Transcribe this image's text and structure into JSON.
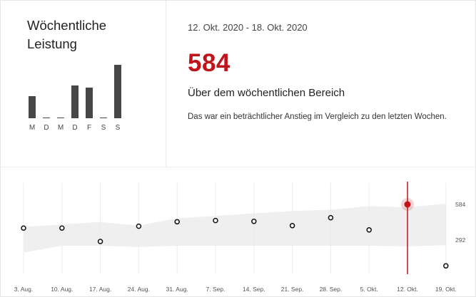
{
  "card": {
    "title": "Wöchentliche Leistung",
    "date_range": "12. Okt. 2020 - 18. Okt. 2020",
    "value": "584",
    "subtitle": "Über dem wöchentlichen Bereich",
    "description": "Das war ein beträchtlicher Anstieg im Vergleich zu den letzten Wochen.",
    "accent_color": "#c0141b"
  },
  "daily_bars": {
    "days": [
      "M",
      "D",
      "M",
      "D",
      "F",
      "S",
      "S"
    ],
    "values": [
      0.42,
      0.02,
      0.02,
      0.62,
      0.58,
      0.02,
      1.0
    ]
  },
  "chart_data": {
    "type": "scatter",
    "x": [
      "3. Aug.",
      "10. Aug.",
      "17. Aug.",
      "24. Aug.",
      "31. Aug.",
      "7. Sep.",
      "14. Sep.",
      "21. Sep.",
      "28. Sep.",
      "5. Okt.",
      "12. Okt.",
      "19. Okt."
    ],
    "values": [
      390,
      390,
      280,
      405,
      442,
      452,
      445,
      410,
      475,
      375,
      584,
      80
    ],
    "band_low": [
      190,
      245,
      245,
      235,
      245,
      245,
      245,
      245,
      245,
      245,
      240,
      250
    ],
    "band_high": [
      400,
      420,
      440,
      410,
      470,
      490,
      510,
      530,
      540,
      570,
      560,
      590
    ],
    "highlight_index": 10,
    "yticks": [
      292,
      584
    ],
    "ylim": [
      0,
      720
    ]
  }
}
